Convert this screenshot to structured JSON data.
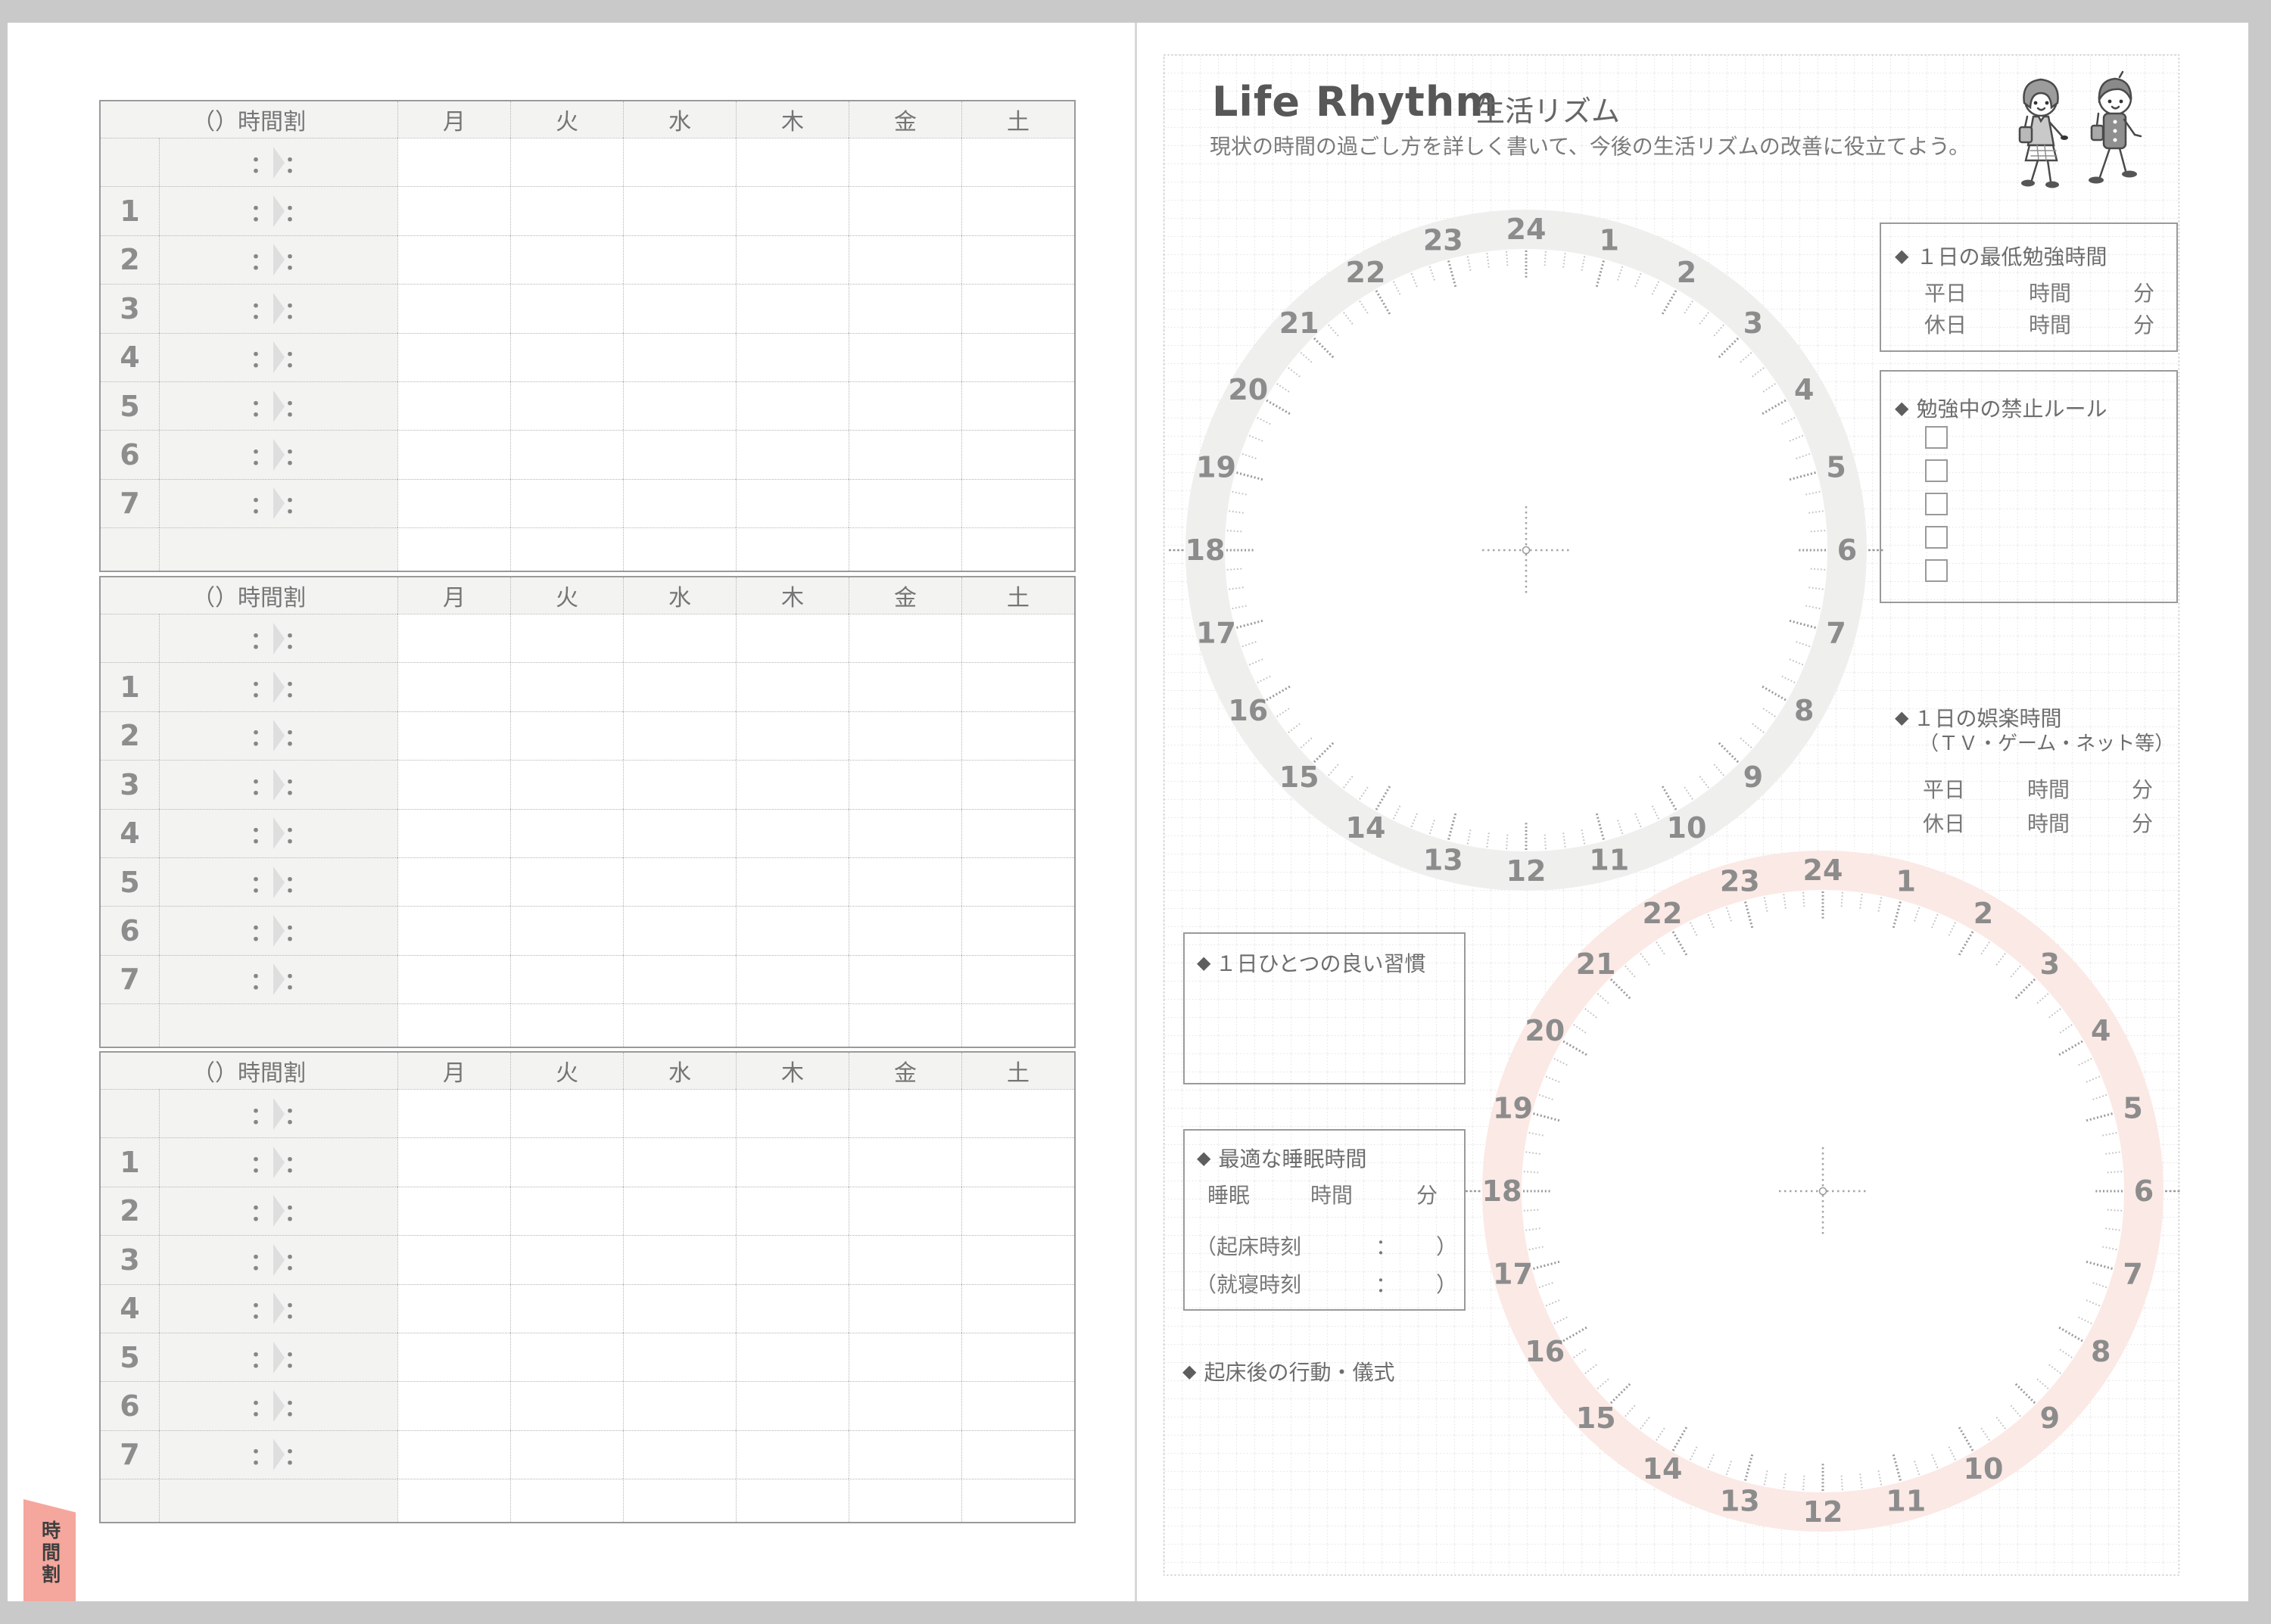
{
  "colors": {
    "frame_bg": "#c9c9c9",
    "page_bg": "#ffffff",
    "table_border": "#9a9a9a",
    "grid_line": "#cdcdcd",
    "tab_pink": "#f5a79d",
    "clock_band_gray": "#efefed",
    "clock_band_pink": "#fbe9e5"
  },
  "tab": {
    "label": "時間割"
  },
  "timetable": {
    "header_open": "（",
    "header_close": "）時間割",
    "days": [
      "月",
      "火",
      "水",
      "木",
      "金",
      "土"
    ],
    "periods": [
      "",
      "1",
      "2",
      "3",
      "4",
      "5",
      "6",
      "7",
      ""
    ],
    "colon": "："
  },
  "life_rhythm": {
    "title_en": "Life Rhythm",
    "title_ja": "生活リズム",
    "subtitle": "現状の時間の過ごし方を詳しく書いて、今後の生活リズムの改善に役立てよう。",
    "clocks": {
      "hours": [
        "1",
        "2",
        "3",
        "4",
        "5",
        "6",
        "7",
        "8",
        "9",
        "10",
        "11",
        "12",
        "13",
        "14",
        "15",
        "16",
        "17",
        "18",
        "19",
        "20",
        "21",
        "22",
        "23",
        "24"
      ],
      "top": {
        "band_color": "#efefed",
        "number_color": "#8c8c8c"
      },
      "bottom": {
        "band_color": "#fbe9e5",
        "number_color": "#8c8c8c"
      }
    },
    "sections": {
      "study": {
        "bullet": "◆",
        "title": "１日の最低勉強時間",
        "weekday_label": "平日",
        "holiday_label": "休日",
        "hour_unit": "時間",
        "min_unit": "分"
      },
      "forbidden": {
        "bullet": "◆",
        "title": "勉強中の禁止ルール",
        "checkbox_count": 5
      },
      "entertainment": {
        "bullet": "◆",
        "title": "１日の娯楽時間",
        "subtitle": "（ＴＶ・ゲーム・ネット等）",
        "weekday_label": "平日",
        "holiday_label": "休日",
        "hour_unit": "時間",
        "min_unit": "分"
      },
      "habit": {
        "bullet": "◆",
        "title": "１日ひとつの良い習慣"
      },
      "sleep": {
        "bullet": "◆",
        "title": "最適な睡眠時間",
        "sleep_label": "睡眠",
        "hour_unit": "時間",
        "min_unit": "分",
        "wake_label": "（起床時刻",
        "bed_label": "（就寝時刻",
        "colon": "：",
        "paren_close": "）"
      },
      "morning": {
        "bullet": "◆",
        "title": "起床後の行動・儀式"
      }
    }
  }
}
